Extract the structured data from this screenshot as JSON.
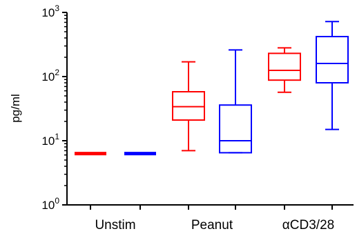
{
  "chart_data": {
    "type": "box",
    "ylabel": "pg/ml",
    "xlabel": "",
    "yscale": "log",
    "ylim": [
      1,
      1000
    ],
    "yticks": [
      {
        "value": 1,
        "base": "10",
        "exp": "0"
      },
      {
        "value": 10,
        "base": "10",
        "exp": "1"
      },
      {
        "value": 100,
        "base": "10",
        "exp": "2"
      },
      {
        "value": 1000,
        "base": "10",
        "exp": "3"
      }
    ],
    "categories": [
      "Unstim",
      "Peanut",
      "αCD3/28"
    ],
    "colors": {
      "red": "#ff0000",
      "blue": "#0000ff"
    },
    "boxes": [
      {
        "category": "Unstim",
        "color": "#ff0000",
        "min": 6.3,
        "q1": 6.3,
        "median": 6.3,
        "q3": 6.3,
        "max": 6.3
      },
      {
        "category": "Unstim",
        "color": "#0000ff",
        "min": 6.3,
        "q1": 6.3,
        "median": 6.3,
        "q3": 6.3,
        "max": 6.3
      },
      {
        "category": "Peanut",
        "color": "#ff0000",
        "min": 7,
        "q1": 21,
        "median": 34,
        "q3": 58,
        "max": 170
      },
      {
        "category": "Peanut",
        "color": "#0000ff",
        "min": 6.5,
        "q1": 6.5,
        "median": 10,
        "q3": 36,
        "max": 260
      },
      {
        "category": "αCD3/28",
        "color": "#ff0000",
        "min": 57,
        "q1": 88,
        "median": 125,
        "q3": 230,
        "max": 280
      },
      {
        "category": "αCD3/28",
        "color": "#0000ff",
        "min": 15,
        "q1": 80,
        "median": 160,
        "q3": 420,
        "max": 720
      }
    ]
  }
}
